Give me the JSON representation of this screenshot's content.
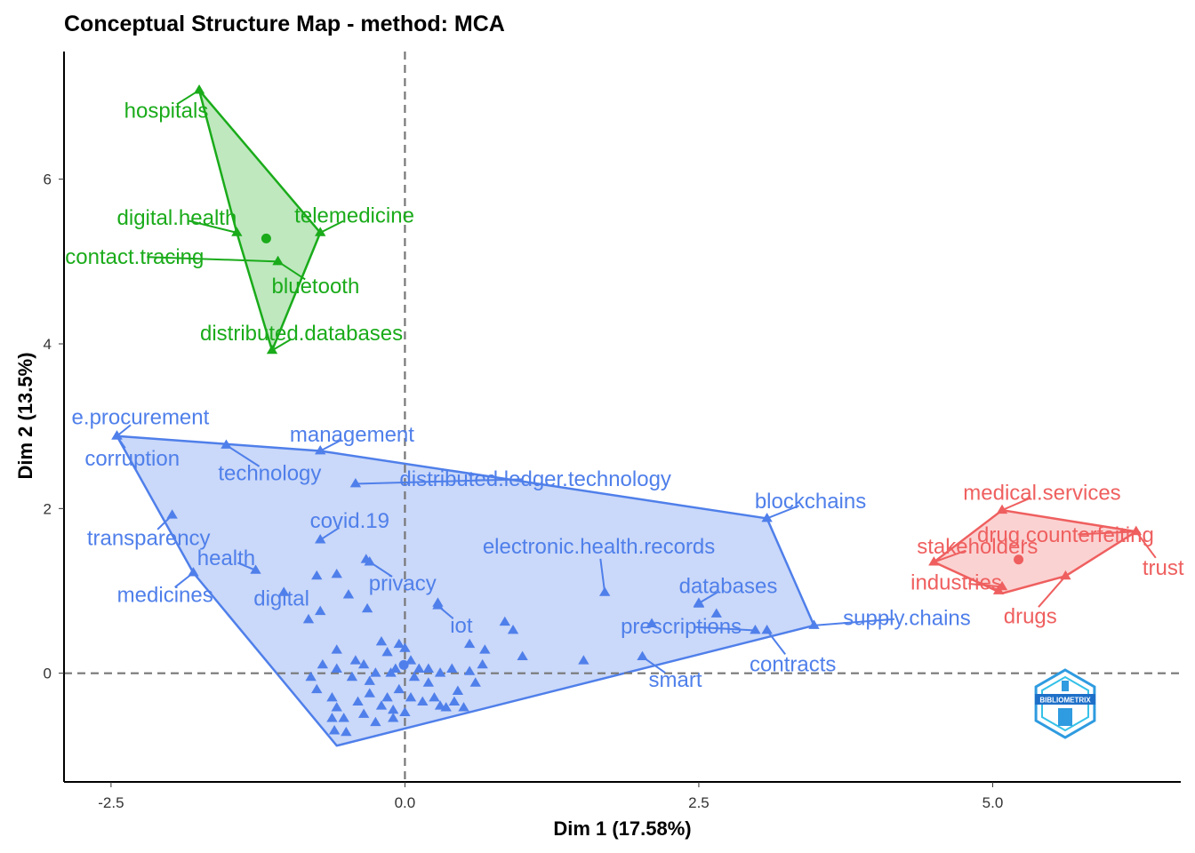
{
  "chart_data": {
    "type": "scatter",
    "title": "Conceptual Structure Map - method: MCA",
    "xlabel": "Dim 1 (17.58%)",
    "ylabel": "Dim 2 (13.5%)",
    "xlim": [
      -2.9,
      6.6
    ],
    "ylim": [
      -1.32,
      7.55
    ],
    "xticks": [
      -2.5,
      0.0,
      2.5,
      5.0
    ],
    "xtick_labels": [
      "-2.5",
      "0.0",
      "2.5",
      "5.0"
    ],
    "yticks": [
      0,
      2,
      4,
      6
    ],
    "ytick_labels": [
      "0",
      "2",
      "4",
      "6"
    ],
    "reference_lines": {
      "x": 0,
      "y": 0,
      "style": "dashed"
    },
    "grid": false,
    "logo": "BIBLIOMETRIX",
    "clusters": [
      {
        "color": "#1aab1a",
        "fill": "rgba(26,171,26,0.28)",
        "centroid": [
          -1.18,
          5.28
        ],
        "hull": [
          [
            -1.75,
            7.08
          ],
          [
            -0.72,
            5.35
          ],
          [
            -1.13,
            3.92
          ],
          [
            -1.43,
            5.35
          ]
        ],
        "points": [
          {
            "label": "hospitals",
            "x": -1.75,
            "y": 7.08,
            "lx": -2.03,
            "ly": 6.83
          },
          {
            "label": "digital.health",
            "x": -1.43,
            "y": 5.35,
            "lx": -1.94,
            "ly": 5.53
          },
          {
            "label": "telemedicine",
            "x": -0.72,
            "y": 5.35,
            "lx": -0.43,
            "ly": 5.56
          },
          {
            "label": "contact.tracing",
            "x": -1.08,
            "y": 5.0,
            "lx": -2.3,
            "ly": 5.06
          },
          {
            "label": "bluetooth",
            "x": -1.08,
            "y": 5.0,
            "lx": -0.76,
            "ly": 4.7
          },
          {
            "label": "distributed.databases",
            "x": -1.13,
            "y": 3.92,
            "lx": -0.88,
            "ly": 4.13
          }
        ]
      },
      {
        "color": "#4f7fea",
        "fill": "rgba(79,127,234,0.30)",
        "centroid": [
          -0.01,
          0.1
        ],
        "hull": [
          [
            -2.45,
            2.88
          ],
          [
            -0.72,
            2.7
          ],
          [
            3.08,
            1.88
          ],
          [
            3.48,
            0.58
          ],
          [
            -0.58,
            -0.88
          ],
          [
            -1.8,
            1.22
          ]
        ],
        "points": [
          {
            "label": "e.procurement",
            "x": -2.45,
            "y": 2.88,
            "lx": -2.25,
            "ly": 3.11
          },
          {
            "label": "corruption",
            "x": -2.45,
            "y": 2.88,
            "lx": -2.32,
            "ly": 2.61
          },
          {
            "label": "management",
            "x": -0.72,
            "y": 2.7,
            "lx": -0.45,
            "ly": 2.9
          },
          {
            "label": "technology",
            "x": -1.52,
            "y": 2.77,
            "lx": -1.15,
            "ly": 2.43
          },
          {
            "label": "distributed.ledger.technology",
            "x": -0.42,
            "y": 2.3,
            "lx": 1.11,
            "ly": 2.36
          },
          {
            "label": "blockchains",
            "x": 3.08,
            "y": 1.88,
            "lx": 3.45,
            "ly": 2.09
          },
          {
            "label": "transparency",
            "x": -1.98,
            "y": 1.92,
            "lx": -2.18,
            "ly": 1.64
          },
          {
            "label": "covid.19",
            "x": -0.72,
            "y": 1.62,
            "lx": -0.47,
            "ly": 1.85
          },
          {
            "label": "electronic.health.records",
            "x": 1.7,
            "y": 0.98,
            "lx": 1.65,
            "ly": 1.54
          },
          {
            "label": "health",
            "x": -1.27,
            "y": 1.25,
            "lx": -1.52,
            "ly": 1.4
          },
          {
            "label": "medicines",
            "x": -1.8,
            "y": 1.22,
            "lx": -2.04,
            "ly": 0.95
          },
          {
            "label": "digital",
            "x": -1.03,
            "y": 0.98,
            "lx": -1.05,
            "ly": 0.91
          },
          {
            "label": "privacy",
            "x": -0.33,
            "y": 1.38,
            "lx": -0.02,
            "ly": 1.09
          },
          {
            "label": "databases",
            "x": 2.5,
            "y": 0.85,
            "lx": 2.75,
            "ly": 1.06
          },
          {
            "label": "iot",
            "x": 0.28,
            "y": 0.82,
            "lx": 0.48,
            "ly": 0.58
          },
          {
            "label": "supply.chains",
            "x": 3.48,
            "y": 0.58,
            "lx": 4.27,
            "ly": 0.67
          },
          {
            "label": "prescriptions",
            "x": 2.98,
            "y": 0.52,
            "lx": 2.35,
            "ly": 0.57
          },
          {
            "label": "contracts",
            "x": 3.08,
            "y": 0.52,
            "lx": 3.3,
            "ly": 0.11
          },
          {
            "label": "smart",
            "x": 2.02,
            "y": 0.2,
            "lx": 2.3,
            "ly": -0.08
          }
        ],
        "extra_points": [
          [
            -0.3,
            1.35
          ],
          [
            -0.58,
            1.2
          ],
          [
            -0.75,
            1.18
          ],
          [
            -0.48,
            0.95
          ],
          [
            -0.32,
            0.78
          ],
          [
            -0.72,
            0.75
          ],
          [
            -0.82,
            0.65
          ],
          [
            0.28,
            0.85
          ],
          [
            0.85,
            0.62
          ],
          [
            0.92,
            0.52
          ],
          [
            1.0,
            0.2
          ],
          [
            0.55,
            0.35
          ],
          [
            0.68,
            0.28
          ],
          [
            0.66,
            0.1
          ],
          [
            0.55,
            0.02
          ],
          [
            1.52,
            0.15
          ],
          [
            2.1,
            0.6
          ],
          [
            2.65,
            0.72
          ],
          [
            2.5,
            0.84
          ],
          [
            -0.58,
            0.28
          ],
          [
            -0.42,
            0.15
          ],
          [
            -0.58,
            0.05
          ],
          [
            -0.45,
            -0.05
          ],
          [
            -0.7,
            0.1
          ],
          [
            -0.8,
            -0.05
          ],
          [
            -0.75,
            -0.2
          ],
          [
            -0.62,
            -0.3
          ],
          [
            -0.58,
            -0.42
          ],
          [
            -0.52,
            -0.55
          ],
          [
            -0.5,
            -0.72
          ],
          [
            -0.6,
            -0.7
          ],
          [
            -0.62,
            -0.55
          ],
          [
            -0.4,
            -0.35
          ],
          [
            -0.35,
            -0.5
          ],
          [
            -0.3,
            -0.25
          ],
          [
            -0.2,
            -0.4
          ],
          [
            -0.15,
            -0.3
          ],
          [
            -0.1,
            -0.45
          ],
          [
            -0.05,
            -0.2
          ],
          [
            -0.2,
            0.38
          ],
          [
            -0.15,
            0.25
          ],
          [
            -0.08,
            0.05
          ],
          [
            -0.05,
            0.35
          ],
          [
            0.0,
            0.3
          ],
          [
            0.05,
            0.15
          ],
          [
            0.08,
            -0.05
          ],
          [
            0.12,
            0.05
          ],
          [
            0.2,
            -0.12
          ],
          [
            0.25,
            -0.3
          ],
          [
            0.3,
            0.0
          ],
          [
            0.35,
            -0.42
          ],
          [
            0.42,
            -0.35
          ],
          [
            0.5,
            -0.42
          ],
          [
            0.45,
            -0.22
          ],
          [
            0.3,
            -0.4
          ],
          [
            0.15,
            -0.35
          ],
          [
            0.05,
            -0.3
          ],
          [
            -0.12,
            0.0
          ],
          [
            -0.25,
            0.0
          ],
          [
            -0.3,
            -0.1
          ],
          [
            -0.35,
            0.1
          ],
          [
            0.2,
            0.05
          ],
          [
            0.4,
            0.05
          ],
          [
            0.6,
            -0.12
          ],
          [
            -0.25,
            -0.6
          ],
          [
            -0.1,
            -0.55
          ],
          [
            0.0,
            -0.48
          ]
        ]
      },
      {
        "color": "#ef5f5f",
        "fill": "rgba(239,95,95,0.28)",
        "centroid": [
          5.22,
          1.38
        ],
        "hull": [
          [
            5.08,
            1.98
          ],
          [
            6.22,
            1.72
          ],
          [
            5.62,
            1.18
          ],
          [
            5.08,
            0.97
          ],
          [
            4.5,
            1.35
          ]
        ],
        "points": [
          {
            "label": "medical.services",
            "x": 5.08,
            "y": 1.98,
            "lx": 5.42,
            "ly": 2.19
          },
          {
            "label": "drug.counterfeiting",
            "x": 6.22,
            "y": 1.72,
            "lx": 5.62,
            "ly": 1.68
          },
          {
            "label": "stakeholders",
            "x": 4.5,
            "y": 1.35,
            "lx": 4.87,
            "ly": 1.54
          },
          {
            "label": "trust",
            "x": 6.22,
            "y": 1.72,
            "lx": 6.45,
            "ly": 1.28
          },
          {
            "label": "industries",
            "x": 5.08,
            "y": 1.05,
            "lx": 4.69,
            "ly": 1.1
          },
          {
            "label": "drugs",
            "x": 5.62,
            "y": 1.18,
            "lx": 5.32,
            "ly": 0.69
          }
        ],
        "extra_points": [
          [
            5.05,
            1.0
          ]
        ]
      }
    ]
  }
}
